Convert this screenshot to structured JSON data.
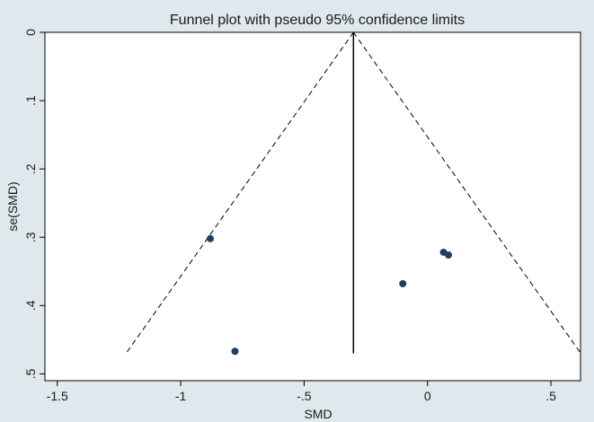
{
  "chart_data": {
    "type": "scatter",
    "title": "Funnel plot with pseudo 95% confidence limits",
    "xlabel": "SMD",
    "ylabel": "se(SMD)",
    "xlim": [
      -1.55,
      0.62
    ],
    "ylim": [
      0,
      0.51
    ],
    "y_reversed": true,
    "x_ticks": [
      -1.5,
      -1,
      -0.5,
      0,
      0.5
    ],
    "x_tick_labels": [
      "-1.5",
      "-1",
      "-.5",
      "0",
      ".5"
    ],
    "y_ticks": [
      0,
      0.1,
      0.2,
      0.3,
      0.4,
      0.5
    ],
    "y_tick_labels": [
      "0",
      ".1",
      ".2",
      ".3",
      ".4",
      ".5"
    ],
    "grid": false,
    "legend": "none",
    "pooled_estimate": -0.3,
    "funnel_se_max": 0.47,
    "points": [
      {
        "x": -0.88,
        "y": 0.302
      },
      {
        "x": -0.78,
        "y": 0.467
      },
      {
        "x": -0.1,
        "y": 0.368
      },
      {
        "x": 0.065,
        "y": 0.322
      },
      {
        "x": 0.085,
        "y": 0.326
      }
    ],
    "colors": {
      "point": "#1f3f66",
      "line": "#000000",
      "frame_background": "#dfe8ed",
      "plot_background": "#ffffff"
    }
  }
}
